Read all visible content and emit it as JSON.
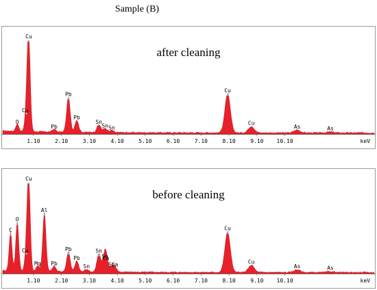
{
  "caption": "Sample (B)",
  "chart_data": [
    {
      "type": "area",
      "title": "after cleaning",
      "xlabel": "keV",
      "ylabel": "",
      "xlim": [
        0,
        13.3
      ],
      "ylim": [
        0,
        100
      ],
      "grid": false,
      "x_ticks": [
        "1.10",
        "2.10",
        "3.10",
        "4.10",
        "5.10",
        "6.10",
        "7.10",
        "8.10",
        "9.10",
        "10.10"
      ],
      "color": "#e8202a",
      "peaks": [
        {
          "label": "O",
          "x": 0.52,
          "y": 8
        },
        {
          "label": "Cu",
          "x": 0.93,
          "y": 100
        },
        {
          "label": "Cu",
          "x": 0.85,
          "y": 22
        },
        {
          "label": "Pb",
          "x": 1.84,
          "y": 3
        },
        {
          "label": "Pb",
          "x": 2.35,
          "y": 38
        },
        {
          "label": "Pb",
          "x": 2.65,
          "y": 13
        },
        {
          "label": "Sn",
          "x": 3.44,
          "y": 8
        },
        {
          "label": "Sn",
          "x": 3.66,
          "y": 4
        },
        {
          "label": "Sn",
          "x": 3.9,
          "y": 2
        },
        {
          "label": "Cu",
          "x": 8.05,
          "y": 42
        },
        {
          "label": "Cu",
          "x": 8.9,
          "y": 7
        },
        {
          "label": "As",
          "x": 10.54,
          "y": 3
        },
        {
          "label": "As",
          "x": 11.73,
          "y": 1
        }
      ]
    },
    {
      "type": "area",
      "title": "before cleaning",
      "xlabel": "keV",
      "ylabel": "",
      "xlim": [
        0,
        13.3
      ],
      "ylim": [
        0,
        100
      ],
      "grid": false,
      "x_ticks": [
        "1.10",
        "2.10",
        "3.10",
        "4.10",
        "5.10",
        "6.10",
        "7.10",
        "8.10",
        "9.10",
        "10.10"
      ],
      "color": "#e8202a",
      "peaks": [
        {
          "label": "C",
          "x": 0.28,
          "y": 43
        },
        {
          "label": "O",
          "x": 0.52,
          "y": 55
        },
        {
          "label": "Cu",
          "x": 0.93,
          "y": 100
        },
        {
          "label": "Cu",
          "x": 0.85,
          "y": 22
        },
        {
          "label": "Mg",
          "x": 1.25,
          "y": 6
        },
        {
          "label": "Al",
          "x": 1.49,
          "y": 65
        },
        {
          "label": "Pb",
          "x": 1.84,
          "y": 6
        },
        {
          "label": "Pb",
          "x": 2.35,
          "y": 22
        },
        {
          "label": "Pb",
          "x": 2.65,
          "y": 12
        },
        {
          "label": "Sn",
          "x": 3.0,
          "y": 3
        },
        {
          "label": "Sn",
          "x": 3.44,
          "y": 20
        },
        {
          "label": "Sn",
          "x": 3.66,
          "y": 14
        },
        {
          "label": "Ca",
          "x": 3.69,
          "y": 12
        },
        {
          "label": "Ca",
          "x": 4.01,
          "y": 5
        },
        {
          "label": "Sn",
          "x": 3.9,
          "y": 5
        },
        {
          "label": "Cu",
          "x": 8.05,
          "y": 45
        },
        {
          "label": "Cu",
          "x": 8.9,
          "y": 8
        },
        {
          "label": "As",
          "x": 10.54,
          "y": 3
        },
        {
          "label": "As",
          "x": 11.73,
          "y": 1
        }
      ]
    }
  ]
}
